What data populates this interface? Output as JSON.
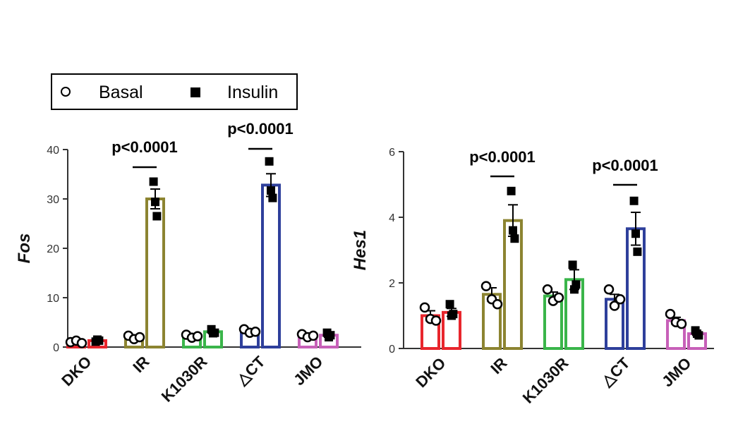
{
  "legend": {
    "basal_label": "Basal",
    "insulin_label": "Insulin"
  },
  "chart_data": [
    {
      "type": "bar",
      "ylabel": "Fos",
      "ylim": [
        0,
        40
      ],
      "yticks": [
        "0",
        "10",
        "20",
        "30",
        "40"
      ],
      "categories": [
        "DKO",
        "IR",
        "K1030R",
        "△CT",
        "JMO"
      ],
      "category_colors": [
        "#e8262d",
        "#8c8431",
        "#3ab54a",
        "#2e3f9b",
        "#c760b8"
      ],
      "series": [
        {
          "name": "Basal",
          "marker": "open-circle",
          "values": [
            1.0,
            2.0,
            2.2,
            3.2,
            2.3
          ],
          "errors": [
            0.2,
            0.3,
            0.3,
            0.4,
            0.3
          ],
          "points": [
            [
              1.0,
              1.3,
              0.8
            ],
            [
              2.3,
              1.6,
              2.0
            ],
            [
              2.5,
              1.9,
              2.2
            ],
            [
              3.6,
              2.9,
              3.1
            ],
            [
              2.6,
              2.0,
              2.3
            ]
          ]
        },
        {
          "name": "Insulin",
          "marker": "filled-square",
          "values": [
            1.3,
            30.0,
            3.1,
            32.8,
            2.4
          ],
          "errors": [
            0.2,
            2.0,
            0.4,
            2.3,
            0.4
          ],
          "points": [
            [
              1.1,
              1.5,
              1.3
            ],
            [
              33.5,
              29.4,
              26.5
            ],
            [
              3.6,
              2.8,
              2.9
            ],
            [
              37.6,
              31.7,
              30.2
            ],
            [
              2.9,
              2.0,
              2.4
            ]
          ]
        }
      ],
      "annotations": [
        {
          "text": "p<0.0001",
          "category": "IR"
        },
        {
          "text": "p<0.0001",
          "category": "△CT"
        }
      ]
    },
    {
      "type": "bar",
      "ylabel": "Hes1",
      "ylim": [
        0,
        6
      ],
      "yticks": [
        "0",
        "2",
        "4",
        "6"
      ],
      "categories": [
        "DKO",
        "IR",
        "K1030R",
        "△CT",
        "JMO"
      ],
      "category_colors": [
        "#e8262d",
        "#8c8431",
        "#3ab54a",
        "#2e3f9b",
        "#c760b8"
      ],
      "series": [
        {
          "name": "Basal",
          "marker": "open-circle",
          "values": [
            1.0,
            1.65,
            1.6,
            1.5,
            0.85
          ],
          "errors": [
            0.15,
            0.2,
            0.12,
            0.15,
            0.1
          ],
          "points": [
            [
              1.25,
              0.9,
              0.85
            ],
            [
              1.9,
              1.5,
              1.35
            ],
            [
              1.8,
              1.45,
              1.55
            ],
            [
              1.8,
              1.3,
              1.5
            ],
            [
              1.05,
              0.8,
              0.75
            ]
          ]
        },
        {
          "name": "Insulin",
          "marker": "filled-square",
          "values": [
            1.1,
            3.9,
            2.1,
            3.65,
            0.45
          ],
          "errors": [
            0.12,
            0.48,
            0.3,
            0.5,
            0.05
          ],
          "points": [
            [
              1.35,
              1.0,
              1.05
            ],
            [
              4.8,
              3.6,
              3.35
            ],
            [
              2.55,
              1.8,
              1.95
            ],
            [
              4.5,
              3.5,
              2.95
            ],
            [
              0.55,
              0.45,
              0.4
            ]
          ]
        }
      ],
      "annotations": [
        {
          "text": "p<0.0001",
          "category": "IR"
        },
        {
          "text": "p<0.0001",
          "category": "△CT"
        }
      ]
    }
  ]
}
